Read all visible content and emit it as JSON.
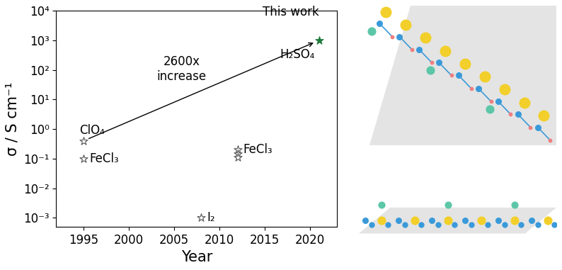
{
  "chart_data": {
    "type": "scatter",
    "x_label": "Year",
    "y_label": "σ / S cm⁻¹",
    "x": [
      1995,
      1995,
      2008,
      2012,
      2012,
      2012,
      2021
    ],
    "values": [
      0.4,
      0.1,
      0.001,
      0.2,
      0.15,
      0.11,
      1000
    ],
    "labels": [
      "ClO₄",
      "FeCl₃",
      "I₂",
      "FeCl₃",
      null,
      null,
      "H₂SO₄"
    ],
    "colors": [
      "white",
      "white",
      "white",
      "white",
      "white",
      "white",
      "#1e7b3c"
    ],
    "marker": "star",
    "annotations": [
      {
        "text": "2600x\nincrease"
      },
      {
        "text": "This work"
      }
    ],
    "log": "y",
    "xlim": [
      1992,
      2023
    ],
    "xticks": [
      1995,
      2000,
      2005,
      2010,
      2015,
      2020
    ],
    "ylim": [
      0.0005,
      10000
    ],
    "yticks": [
      {
        "value": 0.001,
        "label": "10⁻³"
      },
      {
        "value": 0.01,
        "label": "10⁻²"
      },
      {
        "value": 0.1,
        "label": "10⁻¹"
      },
      {
        "value": 1,
        "label": "10⁰"
      },
      {
        "value": 10,
        "label": "10¹"
      },
      {
        "value": 100,
        "label": "10²"
      },
      {
        "value": 1000,
        "label": "10³"
      },
      {
        "value": 10000,
        "label": "10⁴"
      }
    ],
    "grid": false
  }
}
